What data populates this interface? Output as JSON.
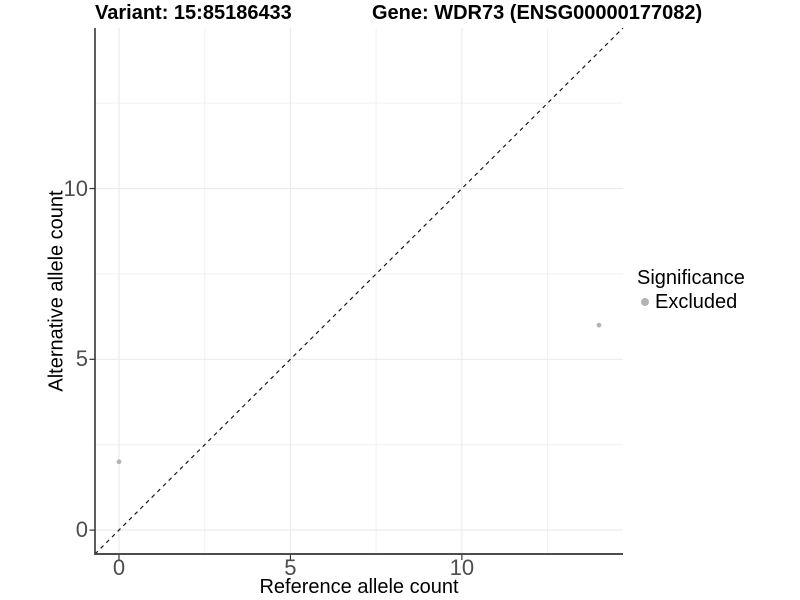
{
  "page": {
    "title_left": "Variant: 15:85186433",
    "title_right": "Gene: WDR73 (ENSG00000177082)"
  },
  "chart_data": {
    "type": "scatter",
    "title_left": "Variant: 15:85186433",
    "title_right": "Gene: WDR73 (ENSG00000177082)",
    "xlabel": "Reference allele count",
    "ylabel": "Alternative allele count",
    "xlim": [
      -0.7,
      14.7
    ],
    "ylim": [
      -0.7,
      14.7
    ],
    "x_ticks": [
      0,
      5,
      10
    ],
    "y_ticks": [
      0,
      5,
      10
    ],
    "x_minor_ticks": [
      2.5,
      7.5,
      12.5
    ],
    "y_minor_ticks": [
      2.5,
      7.5,
      12.5
    ],
    "grid": true,
    "series": [
      {
        "name": "Excluded",
        "color": "#b4b4b4",
        "points": [
          {
            "x": 0,
            "y": 2
          },
          {
            "x": 14,
            "y": 6
          }
        ]
      }
    ],
    "reference_line": {
      "slope": 1,
      "intercept": 0,
      "style": "dashed",
      "color": "#1a1a1a"
    },
    "legend": {
      "title": "Significance",
      "position": "right",
      "items": [
        {
          "label": "Excluded",
          "color": "#b4b4b4"
        }
      ]
    }
  },
  "colors": {
    "grid_major": "#ebebeb",
    "grid_minor": "#f1f1f1",
    "axis_line_left": "#1a1a1a",
    "axis_line_bottom": "#4d4d4d",
    "tick_mark": "#333333",
    "tick_label": "#4d4d4d",
    "point": "#b4b4b4"
  }
}
